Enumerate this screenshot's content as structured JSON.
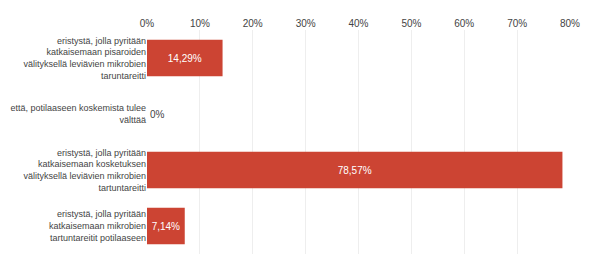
{
  "chart_data": {
    "type": "bar",
    "orientation": "horizontal",
    "categories": [
      "eristystä, jolla pyritään\nkatkaisemaan mikrobien\ntartuntareitit potilaaseen",
      "eristystä, jolla pyritään\nkatkaisemaan kosketuksen\nvälityksellä leviävien mikrobien\ntartuntareitti",
      "että, potilaaseen koskemista tulee\nvälttää",
      "eristystä, jolla pyritään\nkatkaisemaan pisaroiden\nvälityksellä leviävien mikrobien\ntaruntareitti"
    ],
    "values": [
      7.14,
      78.57,
      0,
      14.29
    ],
    "value_labels": [
      "7,14%",
      "78,57%",
      "0%",
      "14,29%"
    ],
    "data_labels": true,
    "color": "#cc4433",
    "xlim": [
      0,
      80
    ],
    "xticks": [
      {
        "value": 0,
        "label": "0%"
      },
      {
        "value": 10,
        "label": "10%"
      },
      {
        "value": 20,
        "label": "20%"
      },
      {
        "value": 30,
        "label": "30%"
      },
      {
        "value": 40,
        "label": "40%"
      },
      {
        "value": 50,
        "label": "50%"
      },
      {
        "value": 60,
        "label": "60%"
      },
      {
        "value": 70,
        "label": "70%"
      },
      {
        "value": 80,
        "label": "80%"
      }
    ],
    "grid": true
  }
}
